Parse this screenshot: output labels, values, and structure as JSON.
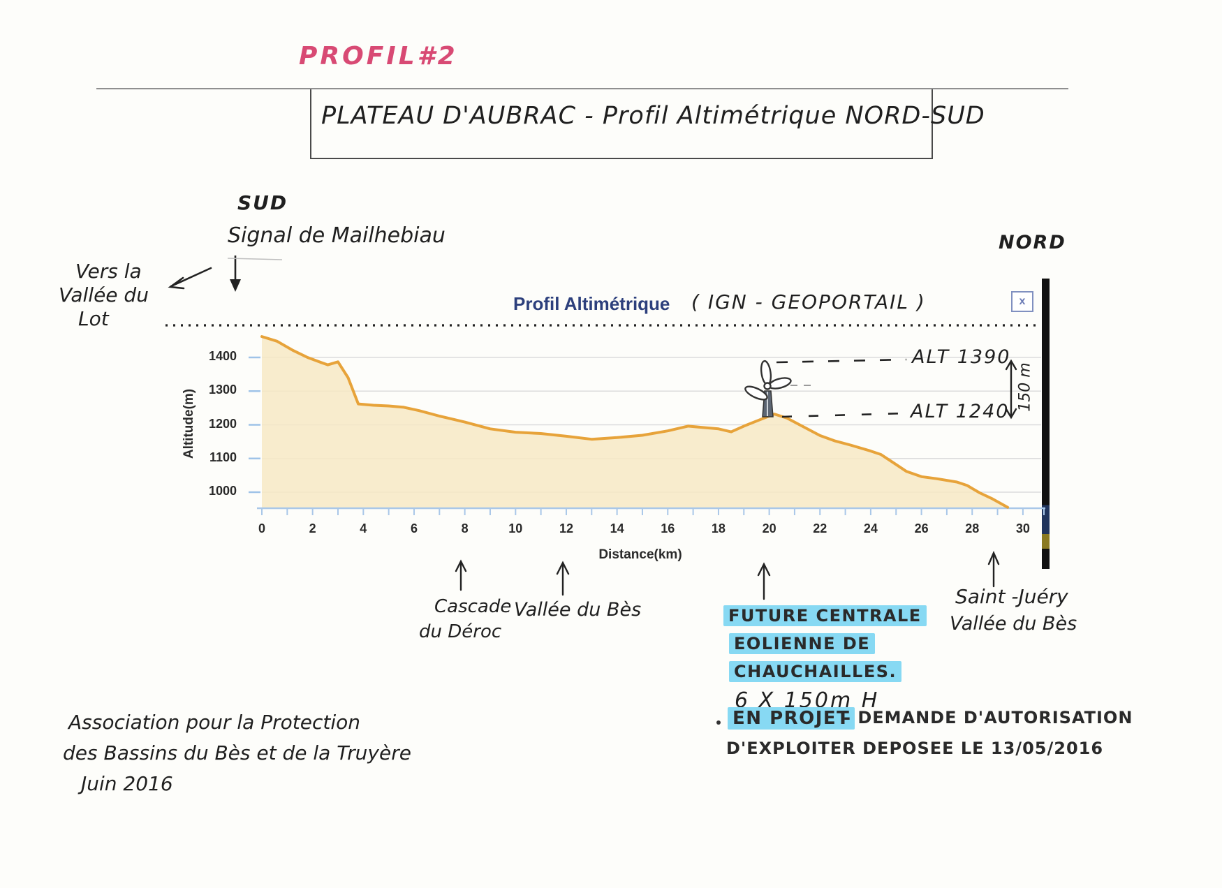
{
  "colors": {
    "accent_pink": "#d84a74",
    "highlight_cyan": "#87d9f3",
    "chart_line": "#e7a33a",
    "chart_fill": "#f7e9c4",
    "printed_blue": "#2c3f7c"
  },
  "header": {
    "profile_tag": "PROFIL#2",
    "box_title": "PLATEAU D'AUBRAC  -  Profil Altimétrique NORD-SUD"
  },
  "compass": {
    "south": "SUD",
    "north": "NORD"
  },
  "left_margin": {
    "line1": "Vers la",
    "line2": "Vallée du",
    "line3": "Lot"
  },
  "summit_label": "Signal de Mailhebiau",
  "chart": {
    "title_printed": "Profil Altimétrique",
    "title_handwritten": "( IGN - GEOPORTAIL )",
    "close_label": "x",
    "ylabel": "Altitude(m)",
    "xlabel": "Distance(km)"
  },
  "turbine_annotation": {
    "alt_top": "ALT 1390",
    "alt_base": "ALT 1240",
    "height": "150 m"
  },
  "below_axis": {
    "cascade_line1": "Cascade",
    "cascade_line2": "du Déroc",
    "vallee_bes": "Vallée du Bès",
    "saint_line1": "Saint -Juéry",
    "saint_line2": "Vallée du Bès"
  },
  "project_note": {
    "hl1": "FUTURE CENTRALE",
    "hl2": "EOLIENNE DE",
    "hl3": "CHAUCHAILLES.",
    "spec": "6 X 150m H",
    "status_hl": "EN PROJET",
    "status_rest": "-  DEMANDE D'AUTORISATION",
    "status_line2": "D'EXPLOITER  DEPOSEE  LE 13/05/2016"
  },
  "footer": {
    "line1": "Association pour la Protection",
    "line2": "des Bassins du Bès et de la Truyère",
    "line3": "Juin 2016"
  },
  "chart_data": {
    "type": "area",
    "title": "Profil Altimétrique (IGN - Geoportail)",
    "xlabel": "Distance(km)",
    "ylabel": "Altitude(m)",
    "xlim": [
      0,
      30
    ],
    "ylim": [
      950,
      1480
    ],
    "x_ticks": [
      0,
      2,
      4,
      6,
      8,
      10,
      12,
      14,
      16,
      18,
      20,
      22,
      24,
      26,
      28,
      30
    ],
    "y_ticks": [
      1000,
      1100,
      1200,
      1300,
      1400
    ],
    "grid": true,
    "legend": "none",
    "line_color": "#e7a33a",
    "fill_color": "#f7e9c4",
    "points_km_m": [
      [
        0,
        1462
      ],
      [
        0.6,
        1448
      ],
      [
        1.2,
        1422
      ],
      [
        1.8,
        1400
      ],
      [
        2.3,
        1386
      ],
      [
        2.6,
        1378
      ],
      [
        3.0,
        1387
      ],
      [
        3.4,
        1340
      ],
      [
        3.8,
        1262
      ],
      [
        4.4,
        1258
      ],
      [
        5.0,
        1256
      ],
      [
        5.6,
        1252
      ],
      [
        6.2,
        1242
      ],
      [
        7.0,
        1226
      ],
      [
        8.0,
        1208
      ],
      [
        9.0,
        1188
      ],
      [
        10.0,
        1178
      ],
      [
        11.0,
        1174
      ],
      [
        12.0,
        1166
      ],
      [
        13.0,
        1157
      ],
      [
        14.0,
        1162
      ],
      [
        15.0,
        1169
      ],
      [
        16.0,
        1182
      ],
      [
        16.8,
        1196
      ],
      [
        17.4,
        1192
      ],
      [
        18.0,
        1188
      ],
      [
        18.5,
        1179
      ],
      [
        19.0,
        1196
      ],
      [
        19.6,
        1214
      ],
      [
        20.2,
        1232
      ],
      [
        20.7,
        1220
      ],
      [
        21.2,
        1200
      ],
      [
        22.0,
        1168
      ],
      [
        22.6,
        1152
      ],
      [
        23.2,
        1140
      ],
      [
        24.0,
        1122
      ],
      [
        24.4,
        1112
      ],
      [
        24.8,
        1092
      ],
      [
        25.4,
        1062
      ],
      [
        26.0,
        1046
      ],
      [
        26.6,
        1040
      ],
      [
        27.4,
        1030
      ],
      [
        27.8,
        1020
      ],
      [
        28.3,
        998
      ],
      [
        28.8,
        980
      ],
      [
        29.4,
        955
      ]
    ],
    "annotations": [
      {
        "x_km": 8,
        "label": "Cascade du Déroc"
      },
      {
        "x_km": 12,
        "label": "Vallée du Bès"
      },
      {
        "x_km": 20.2,
        "label": "Future centrale éolienne de Chauchailles, 6 x 150m H — ALT base 1240, ALT sommet 1390 (150 m)"
      },
      {
        "x_km": 29,
        "label": "Saint-Juéry, Vallée du Bès"
      }
    ]
  }
}
